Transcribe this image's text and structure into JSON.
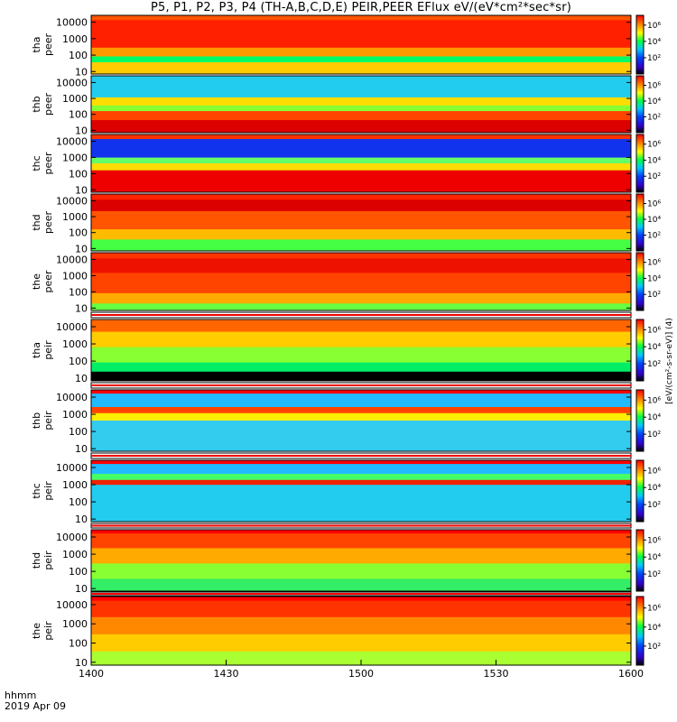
{
  "title": "P5, P1, P2, P3, P4 (TH-A,B,C,D,E) PEIR,PEER EFlux eV/(eV*cm²*sec*sr)",
  "footer": {
    "line1": "hhmm",
    "line2": "2019 Apr 09"
  },
  "chart_data": {
    "type": "heatmap",
    "xlabel": "",
    "x_ticks": [
      "1400",
      "1430",
      "1500",
      "1530",
      "1600"
    ],
    "x_range": [
      "14:00",
      "16:00"
    ],
    "y_scale": "log",
    "y_ticks": [
      "10",
      "100",
      "1000",
      "10000"
    ],
    "colorbar_scale": "log",
    "colorbar_ticks": [
      "10²",
      "10⁴",
      "10⁶"
    ],
    "colorbar_unit": "[eV/(cm²-s-sr-eV)] (4)",
    "colormap": [
      "#000000",
      "#3300cc",
      "#0044ff",
      "#00c8ff",
      "#00ff44",
      "#ffff00",
      "#ff8800",
      "#ff0000"
    ],
    "panels": [
      {
        "probe": "tha",
        "species": "peer",
        "left_label": [
          "tha",
          "peer"
        ]
      },
      {
        "probe": "thb",
        "species": "peer",
        "left_label": [
          "thb",
          "peer"
        ]
      },
      {
        "probe": "thc",
        "species": "peer",
        "left_label": [
          "thc",
          "peer"
        ]
      },
      {
        "probe": "thd",
        "species": "peer",
        "left_label": [
          "thd",
          "peer"
        ]
      },
      {
        "probe": "the",
        "species": "peer",
        "left_label": [
          "the",
          "peer"
        ]
      },
      {
        "probe": "tha",
        "species": "peir",
        "left_label": [
          "tha",
          "peir"
        ]
      },
      {
        "probe": "thb",
        "species": "peir",
        "left_label": [
          "thb",
          "peir"
        ]
      },
      {
        "probe": "thc",
        "species": "peir",
        "left_label": [
          "thc",
          "peir"
        ]
      },
      {
        "probe": "thd",
        "species": "peir",
        "left_label": [
          "thd",
          "peir"
        ]
      },
      {
        "probe": "the",
        "species": "peir",
        "left_label": [
          "the",
          "peir"
        ]
      }
    ]
  }
}
